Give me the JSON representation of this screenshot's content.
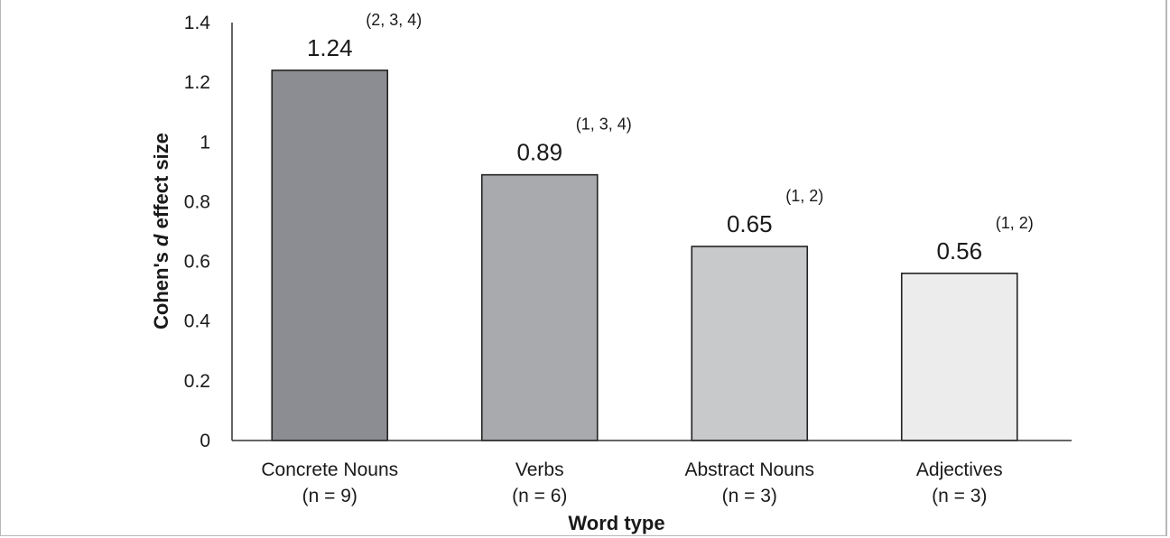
{
  "chart_data": {
    "type": "bar",
    "categories": [
      "Concrete Nouns",
      "Verbs",
      "Abstract Nouns",
      "Adjectives"
    ],
    "category_counts": [
      "(n = 9)",
      "(n = 6)",
      "(n = 3)",
      "(n = 3)"
    ],
    "values": [
      1.24,
      0.89,
      0.65,
      0.56
    ],
    "value_labels": [
      "1.24",
      "0.89",
      "0.65",
      "0.56"
    ],
    "significance_labels": [
      "(2, 3, 4)",
      "(1, 3, 4)",
      "(1, 2)",
      "(1, 2)"
    ],
    "bar_colors": [
      "#8c8d92",
      "#a9aaae",
      "#c8c9cb",
      "#ececec"
    ],
    "xlabel": "Word type",
    "ylabel_parts": [
      "Cohen's ",
      "d",
      " effect size"
    ],
    "ylim": [
      0,
      1.4
    ],
    "yticks": [
      "0",
      "0.2",
      "0.4",
      "0.6",
      "0.8",
      "1",
      "1.2",
      "1.4"
    ],
    "grid": false,
    "legend": "none"
  }
}
